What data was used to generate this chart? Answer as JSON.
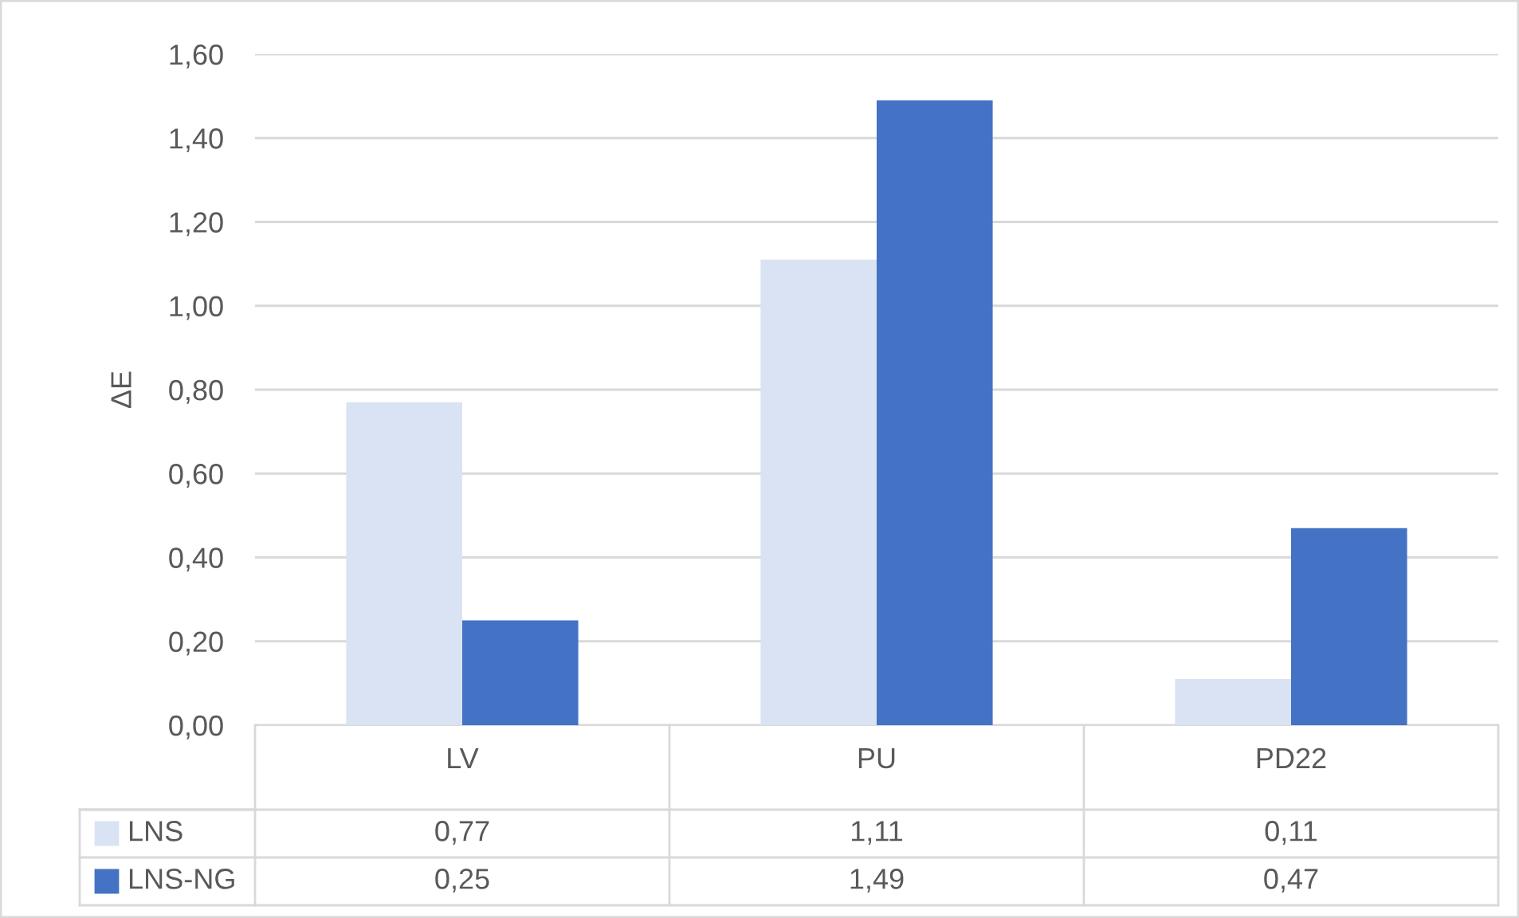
{
  "chart_data": {
    "type": "bar",
    "ylabel": "ΔE",
    "categories": [
      "LV",
      "PU",
      "PD22"
    ],
    "series": [
      {
        "name": "LNS",
        "color": "#dae3f3",
        "values": [
          0.77,
          1.11,
          0.11
        ],
        "value_labels": [
          "0,77",
          "1,11",
          "0,11"
        ]
      },
      {
        "name": "LNS-NG",
        "color": "#4472c4",
        "values": [
          0.25,
          1.49,
          0.47
        ],
        "value_labels": [
          "0,25",
          "1,49",
          "0,47"
        ]
      }
    ],
    "ylim": [
      0,
      1.6
    ],
    "yticks": [
      {
        "value": 0,
        "label": "0,00"
      },
      {
        "value": 0.2,
        "label": "0,20"
      },
      {
        "value": 0.4,
        "label": "0,40"
      },
      {
        "value": 0.6,
        "label": "0,60"
      },
      {
        "value": 0.8,
        "label": "0,80"
      },
      {
        "value": 1.0,
        "label": "1,00"
      },
      {
        "value": 1.2,
        "label": "1,20"
      },
      {
        "value": 1.4,
        "label": "1,40"
      },
      {
        "value": 1.6,
        "label": "1,60"
      }
    ],
    "grid": "y",
    "legend": "bottom left"
  }
}
